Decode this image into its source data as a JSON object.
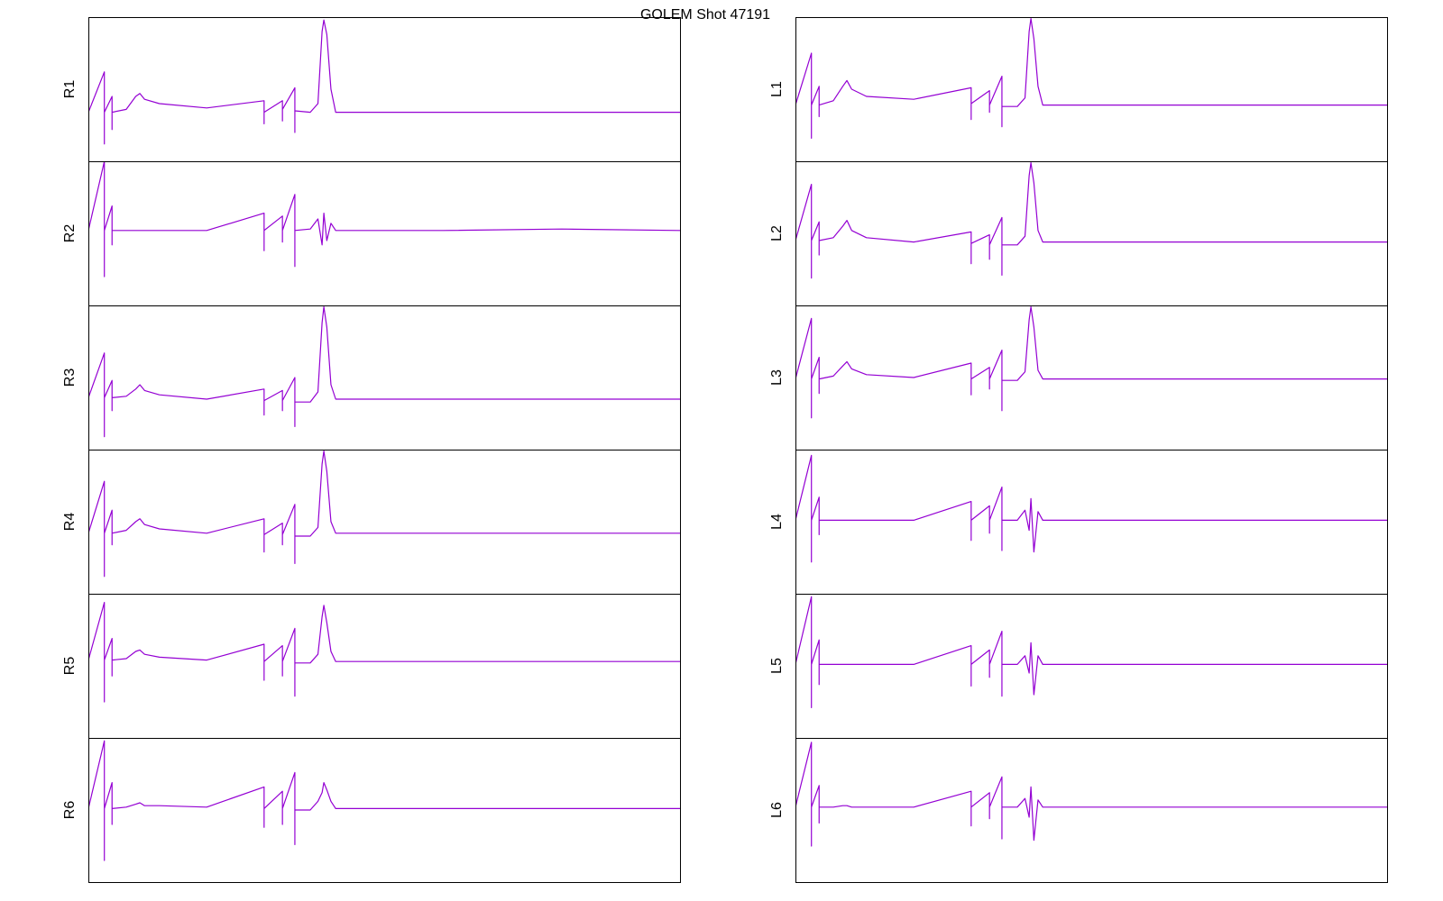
{
  "title": "GOLEM Shot 47191",
  "chart_data": [
    {
      "type": "line",
      "ylabel": "R1",
      "color": "#9400d3",
      "xlim": [
        0,
        100
      ],
      "ylim": [
        0,
        100
      ],
      "x": [
        0,
        2.7,
        2.7,
        2.7,
        4.0,
        4.0,
        4.0,
        6.4,
        8.0,
        8.7,
        9.5,
        12,
        20,
        29.7,
        29.7,
        29.7,
        32.8,
        32.8,
        32.8,
        34.9,
        34.9,
        34.9,
        37.5,
        38.8,
        39.5,
        39.8,
        40.3,
        41.0,
        41.8,
        60,
        80,
        100
      ],
      "values": [
        34,
        62,
        12,
        34,
        45,
        22,
        34,
        36,
        45,
        47,
        43,
        40,
        37,
        42,
        26,
        34,
        42,
        28,
        36,
        51,
        20,
        35,
        34,
        40,
        90,
        98,
        88,
        50,
        34,
        34,
        34,
        34
      ]
    },
    {
      "type": "line",
      "ylabel": "R2",
      "color": "#9400d3",
      "xlim": [
        0,
        100
      ],
      "ylim": [
        0,
        100
      ],
      "x": [
        0,
        2.7,
        2.7,
        2.7,
        4.0,
        4.0,
        4.0,
        6.4,
        8.0,
        8.7,
        9.5,
        12,
        20,
        29.7,
        29.7,
        29.7,
        32.8,
        32.8,
        32.8,
        34.9,
        34.9,
        34.9,
        37.5,
        38.8,
        39.5,
        39.8,
        40.3,
        41.0,
        41.8,
        60,
        80,
        100
      ],
      "values": [
        52,
        100,
        20,
        52,
        69,
        42,
        52,
        52,
        52,
        52,
        52,
        52,
        52,
        64,
        38,
        52,
        62,
        44,
        52,
        77,
        27,
        52,
        53,
        60,
        42,
        64,
        45,
        57,
        52,
        52,
        53,
        52
      ]
    },
    {
      "type": "line",
      "ylabel": "R3",
      "color": "#9400d3",
      "xlim": [
        0,
        100
      ],
      "ylim": [
        0,
        100
      ],
      "x": [
        0,
        2.7,
        2.7,
        2.7,
        4.0,
        4.0,
        4.0,
        6.4,
        8.0,
        8.7,
        9.5,
        12,
        20,
        29.7,
        29.7,
        29.7,
        32.8,
        32.8,
        32.8,
        34.9,
        34.9,
        34.9,
        37.5,
        38.8,
        39.5,
        39.8,
        40.3,
        41.0,
        41.8,
        60,
        80,
        100
      ],
      "values": [
        36,
        67,
        9,
        36,
        48,
        27,
        36,
        37,
        42,
        45,
        41,
        38,
        35,
        42,
        24,
        34,
        41,
        27,
        34,
        50,
        16,
        33,
        33,
        40,
        88,
        99,
        85,
        45,
        35,
        35,
        35,
        35
      ]
    },
    {
      "type": "line",
      "ylabel": "R4",
      "color": "#9400d3",
      "xlim": [
        0,
        100
      ],
      "ylim": [
        0,
        100
      ],
      "x": [
        0,
        2.7,
        2.7,
        2.7,
        4.0,
        4.0,
        4.0,
        6.4,
        8.0,
        8.7,
        9.5,
        12,
        20,
        29.7,
        29.7,
        29.7,
        32.8,
        32.8,
        32.8,
        34.9,
        34.9,
        34.9,
        37.5,
        38.8,
        39.5,
        39.8,
        40.3,
        41.0,
        41.8,
        60,
        80,
        100
      ],
      "values": [
        42,
        78,
        12,
        42,
        58,
        34,
        42,
        44,
        50,
        52,
        48,
        45,
        42,
        52,
        29,
        41,
        49,
        34,
        41,
        62,
        21,
        40,
        40,
        46,
        90,
        99,
        85,
        50,
        42,
        42,
        42,
        42
      ]
    },
    {
      "type": "line",
      "ylabel": "R5",
      "color": "#9400d3",
      "xlim": [
        0,
        100
      ],
      "ylim": [
        0,
        100
      ],
      "x": [
        0,
        2.7,
        2.7,
        2.7,
        4.0,
        4.0,
        4.0,
        6.4,
        8.0,
        8.7,
        9.5,
        12,
        20,
        29.7,
        29.7,
        29.7,
        32.8,
        32.8,
        32.8,
        34.9,
        34.9,
        34.9,
        37.5,
        38.8,
        39.5,
        39.8,
        40.3,
        41.0,
        41.8,
        60,
        80,
        100
      ],
      "values": [
        54,
        94,
        25,
        54,
        69,
        43,
        54,
        55,
        60,
        61,
        58,
        56,
        54,
        65,
        40,
        53,
        64,
        43,
        53,
        76,
        29,
        52,
        52,
        58,
        84,
        92,
        80,
        60,
        53,
        53,
        53,
        53
      ]
    },
    {
      "type": "line",
      "ylabel": "R6",
      "color": "#9400d3",
      "xlim": [
        0,
        100
      ],
      "ylim": [
        0,
        100
      ],
      "x": [
        0,
        2.7,
        2.7,
        2.7,
        4.0,
        4.0,
        4.0,
        6.4,
        8.0,
        8.7,
        9.5,
        12,
        20,
        29.7,
        29.7,
        29.7,
        32.8,
        32.8,
        32.8,
        34.9,
        34.9,
        34.9,
        37.5,
        38.8,
        39.5,
        39.8,
        40.3,
        41.0,
        41.8,
        60,
        80,
        100
      ],
      "values": [
        51,
        98,
        15,
        51,
        69,
        40,
        51,
        52,
        54,
        55,
        53,
        53,
        52,
        66,
        38,
        51,
        63,
        40,
        51,
        76,
        26,
        50,
        50,
        56,
        62,
        69,
        64,
        56,
        51,
        51,
        51,
        51
      ]
    },
    {
      "type": "line",
      "ylabel": "L1",
      "color": "#9400d3",
      "xlim": [
        0,
        100
      ],
      "ylim": [
        0,
        100
      ],
      "x": [
        0,
        2.7,
        2.7,
        2.7,
        4.0,
        4.0,
        4.0,
        6.4,
        8.0,
        8.7,
        9.5,
        12,
        20,
        29.7,
        29.7,
        29.7,
        32.8,
        32.8,
        32.8,
        34.9,
        34.9,
        34.9,
        37.5,
        38.8,
        39.5,
        39.8,
        40.3,
        41.0,
        41.8,
        60,
        80,
        100
      ],
      "values": [
        39,
        75,
        16,
        39,
        52,
        31,
        39,
        42,
        52,
        56,
        50,
        45,
        43,
        51,
        29,
        40,
        49,
        34,
        39,
        59,
        24,
        38,
        38,
        44,
        90,
        99,
        85,
        52,
        39,
        39,
        39,
        39
      ]
    },
    {
      "type": "line",
      "ylabel": "L2",
      "color": "#9400d3",
      "xlim": [
        0,
        100
      ],
      "ylim": [
        0,
        100
      ],
      "x": [
        0,
        2.7,
        2.7,
        2.7,
        4.0,
        4.0,
        4.0,
        6.4,
        8.0,
        8.7,
        9.5,
        12,
        20,
        29.7,
        29.7,
        29.7,
        32.8,
        32.8,
        32.8,
        34.9,
        34.9,
        34.9,
        37.5,
        38.8,
        39.5,
        39.8,
        40.3,
        41.0,
        41.8,
        60,
        80,
        100
      ],
      "values": [
        45,
        84,
        19,
        45,
        58,
        35,
        45,
        47,
        55,
        59,
        52,
        47,
        44,
        51,
        29,
        43,
        49,
        32,
        42,
        61,
        21,
        42,
        42,
        48,
        90,
        99,
        85,
        52,
        44,
        44,
        44,
        44
      ]
    },
    {
      "type": "line",
      "ylabel": "L3",
      "color": "#9400d3",
      "xlim": [
        0,
        100
      ],
      "ylim": [
        0,
        100
      ],
      "x": [
        0,
        2.7,
        2.7,
        2.7,
        4.0,
        4.0,
        4.0,
        6.4,
        8.0,
        8.7,
        9.5,
        12,
        20,
        29.7,
        29.7,
        29.7,
        32.8,
        32.8,
        32.8,
        34.9,
        34.9,
        34.9,
        37.5,
        38.8,
        39.5,
        39.8,
        40.3,
        41.0,
        41.8,
        60,
        80,
        100
      ],
      "values": [
        49,
        91,
        22,
        49,
        64,
        39,
        49,
        51,
        58,
        61,
        56,
        52,
        50,
        60,
        38,
        49,
        57,
        42,
        49,
        69,
        27,
        48,
        48,
        54,
        90,
        99,
        85,
        55,
        49,
        49,
        49,
        49
      ]
    },
    {
      "type": "line",
      "ylabel": "L4",
      "color": "#9400d3",
      "xlim": [
        0,
        100
      ],
      "ylim": [
        0,
        100
      ],
      "x": [
        0,
        2.7,
        2.7,
        2.7,
        4.0,
        4.0,
        4.0,
        6.4,
        8.0,
        8.7,
        9.5,
        12,
        20,
        29.7,
        29.7,
        29.7,
        32.8,
        32.8,
        32.8,
        34.9,
        34.9,
        34.9,
        37.5,
        38.8,
        39.5,
        39.8,
        40.3,
        41.0,
        41.8,
        60,
        80,
        100
      ],
      "values": [
        51,
        96,
        22,
        51,
        67,
        41,
        51,
        51,
        51,
        51,
        51,
        51,
        51,
        64,
        37,
        51,
        61,
        42,
        51,
        74,
        30,
        51,
        51,
        58,
        44,
        66,
        29,
        57,
        51,
        51,
        51,
        51
      ]
    },
    {
      "type": "line",
      "ylabel": "L5",
      "color": "#9400d3",
      "xlim": [
        0,
        100
      ],
      "ylim": [
        0,
        100
      ],
      "x": [
        0,
        2.7,
        2.7,
        2.7,
        4.0,
        4.0,
        4.0,
        6.4,
        8.0,
        8.7,
        9.5,
        12,
        20,
        29.7,
        29.7,
        29.7,
        32.8,
        32.8,
        32.8,
        34.9,
        34.9,
        34.9,
        37.5,
        38.8,
        39.5,
        39.8,
        40.3,
        41.0,
        41.8,
        60,
        80,
        100
      ],
      "values": [
        51,
        98,
        21,
        51,
        68,
        37,
        51,
        51,
        51,
        51,
        51,
        51,
        51,
        64,
        36,
        51,
        61,
        42,
        51,
        74,
        29,
        51,
        51,
        57,
        45,
        66,
        30,
        57,
        51,
        51,
        51,
        51
      ]
    },
    {
      "type": "line",
      "ylabel": "L6",
      "color": "#9400d3",
      "xlim": [
        0,
        100
      ],
      "ylim": [
        0,
        100
      ],
      "x": [
        0,
        2.7,
        2.7,
        2.7,
        4.0,
        4.0,
        4.0,
        6.4,
        8.0,
        8.7,
        9.5,
        12,
        20,
        29.7,
        29.7,
        29.7,
        32.8,
        32.8,
        32.8,
        34.9,
        34.9,
        34.9,
        37.5,
        38.8,
        39.5,
        39.8,
        40.3,
        41.0,
        41.8,
        60,
        80,
        100
      ],
      "values": [
        52,
        97,
        25,
        52,
        67,
        41,
        52,
        52,
        53,
        53,
        52,
        52,
        52,
        63,
        39,
        52,
        62,
        44,
        52,
        73,
        30,
        52,
        52,
        58,
        45,
        66,
        29,
        57,
        52,
        52,
        52,
        52
      ]
    }
  ]
}
